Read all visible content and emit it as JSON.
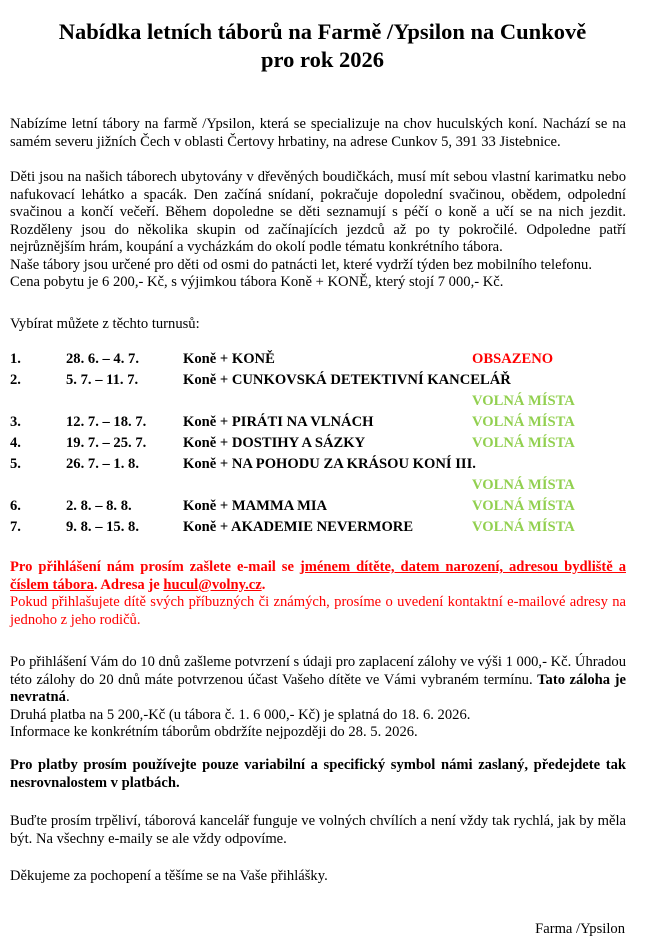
{
  "title": {
    "line1": "Nabídka letních táborů na Farmě /Ypsilon na Cunkově",
    "line2": "pro rok 2026"
  },
  "intro": "Nabízíme letní tábory na farmě /Ypsilon, která se specializuje na chov huculských koní. Nachází se na samém severu jižních Čech v oblasti Čertovy hrbatiny, na adrese Cunkov 5, 391 33 Jistebnice.",
  "details": "Děti jsou na našich táborech ubytovány v dřevěných boudičkách, musí mít sebou vlastní karimatku nebo nafukovací lehátko a spacák. Den začíná snídaní, pokračuje dopolední svačinou, obědem, odpolední svačinou a končí večeří. Během dopoledne se děti seznamují s péčí o koně a učí se na nich jezdit. Rozděleny jsou do několika skupin od začínajících jezdců až po ty pokročilé. Odpoledne patří nejrůznějším hrám, koupání a vycházkám do okolí podle tématu konkrétního tábora.",
  "age": "Naše tábory jsou určené pro děti od osmi do patnácti let, které vydrží týden bez mobilního telefonu.",
  "price": "Cena pobytu je 6 200,- Kč, s výjimkou tábora Koně + KONĚ, který stojí 7 000,- Kč.",
  "choose": "Vybírat můžete z těchto turnusů:",
  "camps": [
    {
      "num": "1.",
      "dates": "28. 6. – 4. 7.",
      "name": "Koně + KONĚ",
      "status": "OBSAZENO",
      "state": "full"
    },
    {
      "num": "2.",
      "dates": "5. 7. – 11. 7.",
      "name": "Koně + CUNKOVSKÁ DETEKTIVNÍ KANCELÁŘ",
      "status": "VOLNÁ MÍSTA",
      "state": "free"
    },
    {
      "num": "3.",
      "dates": "12. 7. – 18. 7.",
      "name": "Koně + PIRÁTI NA VLNÁCH",
      "status": "VOLNÁ MÍSTA",
      "state": "free"
    },
    {
      "num": "4.",
      "dates": "19. 7. – 25. 7.",
      "name": "Koně + DOSTIHY A SÁZKY",
      "status": "VOLNÁ MÍSTA",
      "state": "free"
    },
    {
      "num": "5.",
      "dates": "26. 7. – 1. 8.",
      "name": "Koně + NA POHODU ZA KRÁSOU KONÍ III.",
      "status": "VOLNÁ MÍSTA",
      "state": "free"
    },
    {
      "num": "6.",
      "dates": "2. 8. – 8. 8.",
      "name": "Koně + MAMMA MIA",
      "status": "VOLNÁ MÍSTA",
      "state": "free"
    },
    {
      "num": "7.",
      "dates": "9. 8. – 15. 8.",
      "name": "Koně + AKADEMIE NEVERMORE",
      "status": "VOLNÁ MÍSTA",
      "state": "free"
    }
  ],
  "registration": {
    "lead": "Pro přihlášení nám prosím zašlete e-mail se ",
    "underlined": "jménem dítěte, datem narození, adresou bydliště a číslem tábora",
    "mid": ". Adresa je ",
    "email": "hucul@volny.cz",
    "end": ".",
    "relatives": "Pokud přihlašujete dítě svých příbuzných či známých, prosíme o uvedení kontaktní e-mailové adresy na jednoho z jeho rodičů."
  },
  "payment": {
    "text": "Po přihlášení Vám do 10 dnů zašleme potvrzení s údaji pro zaplacení zálohy ve výši 1 000,- Kč. Úhradou této zálohy do 20 dnů máte potvrzenou účast Vašeho dítěte ve Vámi vybraném termínu. ",
    "bold": "Tato záloha je nevratná",
    "dot": ".",
    "second": "Druhá platba na 5 200,-Kč (u tábora č. 1. 6 000,- Kč) je splatná do 18. 6. 2026.",
    "info": "Informace ke konkrétním táborům obdržíte nejpozději do 28. 5. 2026."
  },
  "symbols": "Pro platby prosím používejte pouze variabilní a specifický symbol námi zaslaný, předejdete tak nesrovnalostem v platbách.",
  "patience": "Buďte prosím trpěliví, táborová kancelář funguje ve volných chvílích a není vždy tak rychlá, jak by měla být. Na všechny e-maily se ale vždy odpovíme.",
  "thanks": "Děkujeme za pochopení a těšíme se na Vaše přihlášky.",
  "signature": "Farma /Ypsilon",
  "colors": {
    "full": "#ff0000",
    "free": "#92d050"
  }
}
